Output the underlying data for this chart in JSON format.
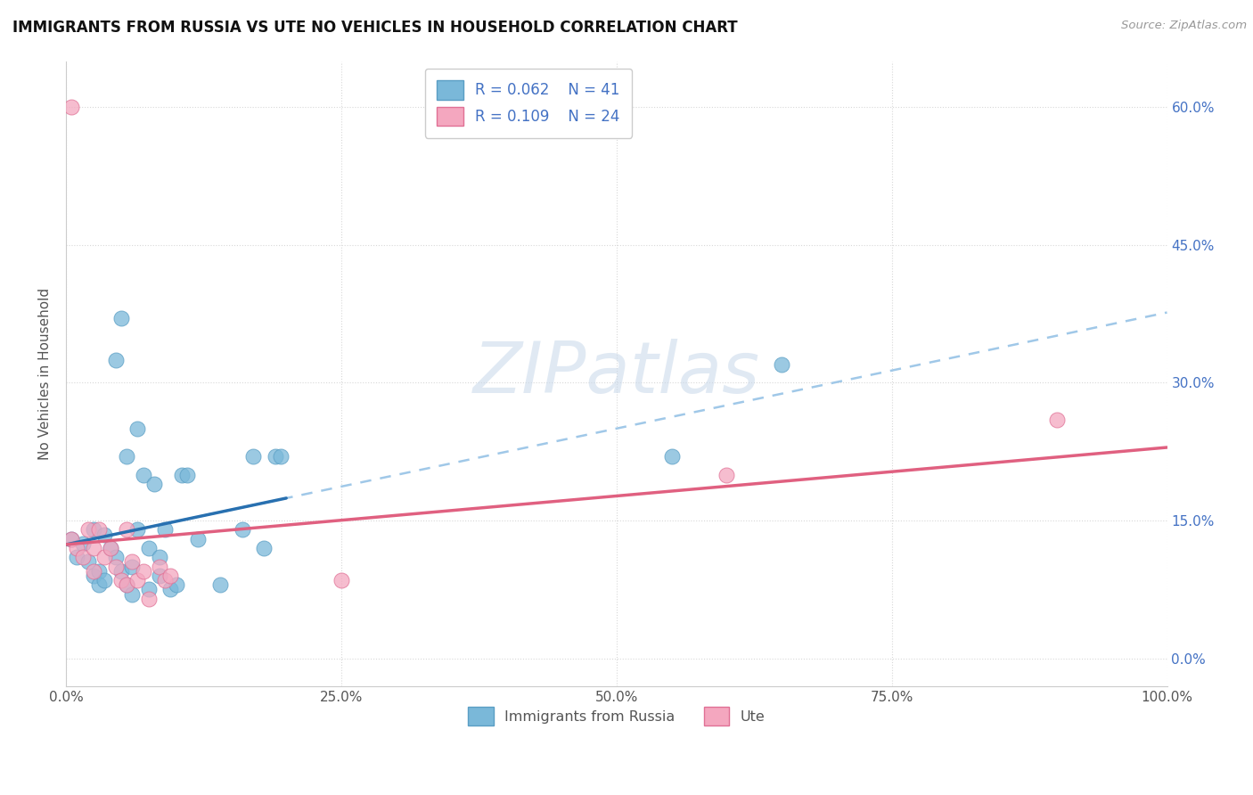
{
  "title": "IMMIGRANTS FROM RUSSIA VS UTE NO VEHICLES IN HOUSEHOLD CORRELATION CHART",
  "source": "Source: ZipAtlas.com",
  "ylabel": "No Vehicles in Household",
  "xlim": [
    0,
    100
  ],
  "ylim": [
    -3,
    65
  ],
  "yticks": [
    0,
    15,
    30,
    45,
    60
  ],
  "xticks": [
    0,
    25,
    50,
    75,
    100
  ],
  "xtick_labels": [
    "0.0%",
    "25.0%",
    "50.0%",
    "75.0%",
    "100.0%"
  ],
  "ytick_labels": [
    "0.0%",
    "15.0%",
    "30.0%",
    "45.0%",
    "60.0%"
  ],
  "legend_r1": "R = 0.062",
  "legend_n1": "N = 41",
  "legend_r2": "R = 0.109",
  "legend_n2": "N = 24",
  "blue_color": "#7ab8d9",
  "blue_edge": "#5a9ec4",
  "pink_color": "#f4a7bf",
  "pink_edge": "#e07095",
  "trend_blue_solid": "#2870b0",
  "trend_blue_dash": "#a0c8e8",
  "trend_pink_solid": "#e06080",
  "watermark_color": "#c8d8ea",
  "background": "#ffffff",
  "grid_color": "#d8d8d8",
  "blue_x": [
    0.5,
    1.0,
    1.5,
    2.0,
    2.5,
    2.5,
    3.0,
    3.0,
    3.5,
    3.5,
    4.0,
    4.5,
    4.5,
    5.0,
    5.0,
    5.5,
    5.5,
    6.0,
    6.0,
    6.5,
    6.5,
    7.0,
    7.5,
    7.5,
    8.0,
    8.5,
    8.5,
    9.0,
    9.5,
    10.0,
    10.5,
    11.0,
    12.0,
    14.0,
    16.0,
    17.0,
    18.0,
    19.0,
    19.5,
    55.0,
    65.0
  ],
  "blue_y": [
    13.0,
    11.0,
    12.5,
    10.5,
    14.0,
    9.0,
    9.5,
    8.0,
    13.5,
    8.5,
    12.0,
    32.5,
    11.0,
    37.0,
    9.5,
    22.0,
    8.0,
    10.0,
    7.0,
    25.0,
    14.0,
    20.0,
    12.0,
    7.5,
    19.0,
    11.0,
    9.0,
    14.0,
    7.5,
    8.0,
    20.0,
    20.0,
    13.0,
    8.0,
    14.0,
    22.0,
    12.0,
    22.0,
    22.0,
    22.0,
    32.0
  ],
  "pink_x": [
    0.5,
    0.5,
    1.0,
    1.5,
    2.0,
    2.5,
    2.5,
    3.0,
    3.5,
    4.0,
    4.5,
    5.0,
    5.5,
    5.5,
    6.0,
    6.5,
    7.0,
    7.5,
    8.5,
    9.0,
    9.5,
    25.0,
    60.0,
    90.0
  ],
  "pink_y": [
    60.0,
    13.0,
    12.0,
    11.0,
    14.0,
    12.0,
    9.5,
    14.0,
    11.0,
    12.0,
    10.0,
    8.5,
    14.0,
    8.0,
    10.5,
    8.5,
    9.5,
    6.5,
    10.0,
    8.5,
    9.0,
    8.5,
    20.0,
    26.0
  ],
  "watermark": "ZIPatlas"
}
